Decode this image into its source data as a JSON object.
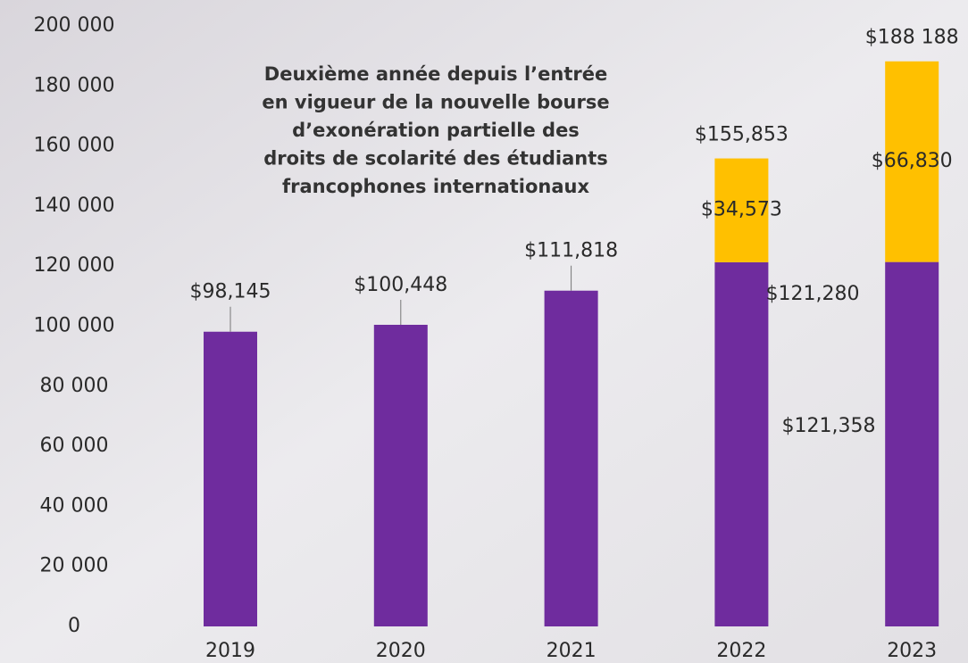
{
  "chart_data": {
    "type": "stacked-bar",
    "annotation": [
      "Deuxième année depuis l’entrée",
      "en vigueur de la nouvelle bourse",
      "d’exonération partielle des",
      "droits de scolarité des étudiants",
      "francophones internationaux"
    ],
    "categories": [
      "2019",
      "2020",
      "2021",
      "2022",
      "2023"
    ],
    "series": [
      {
        "color": "#6f2c9e",
        "values": [
          98145,
          100448,
          111818,
          121280,
          121358
        ],
        "value_labels": [
          "$98,145",
          "$100,448",
          "$111,818",
          "$121,280",
          "$121,358"
        ]
      },
      {
        "color": "#ffc000",
        "values": [
          null,
          null,
          null,
          34573,
          66830
        ],
        "value_labels": [
          null,
          null,
          null,
          "$34,573",
          "$66,830"
        ]
      }
    ],
    "totals": [
      null,
      null,
      null,
      155853,
      188188
    ],
    "total_labels": [
      null,
      null,
      null,
      "$155,853",
      "$188 188"
    ],
    "ylim": [
      0,
      200000
    ],
    "yticks": [
      0,
      {
        "value": 20000,
        "label": "20 000"
      },
      {
        "value": 40000,
        "label": "40 000"
      },
      {
        "value": 60000,
        "label": "60 000"
      },
      {
        "value": 80000,
        "label": "80 000"
      },
      {
        "value": 100000,
        "label": "100 000"
      },
      {
        "value": 120000,
        "label": "120 000"
      },
      {
        "value": 140000,
        "label": "140 000"
      },
      {
        "value": 160000,
        "label": "160 000"
      },
      {
        "value": 180000,
        "label": "180 000"
      },
      {
        "value": 200000,
        "label": "200 000"
      }
    ]
  }
}
